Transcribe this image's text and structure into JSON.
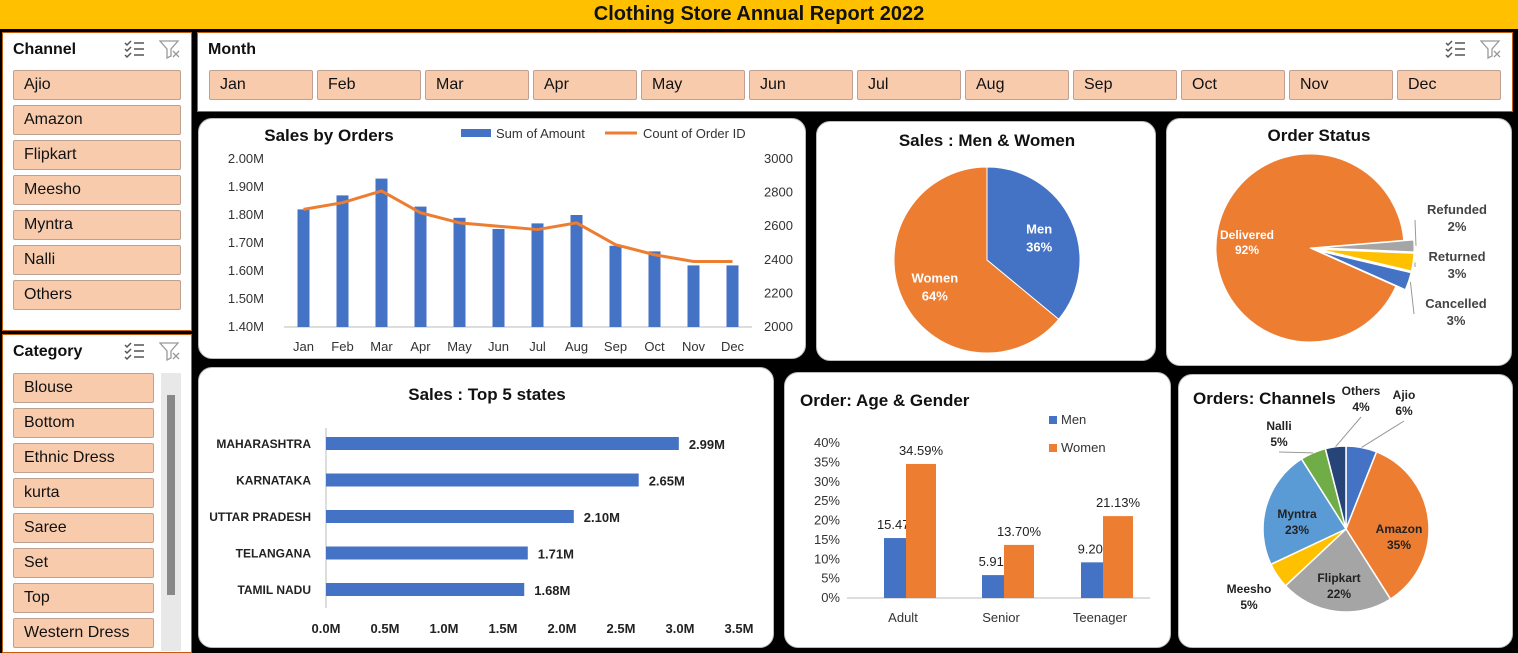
{
  "header": {
    "title": "Clothing Store Annual Report 2022"
  },
  "channel_slicer": {
    "title": "Channel",
    "items": [
      "Ajio",
      "Amazon",
      "Flipkart",
      "Meesho",
      "Myntra",
      "Nalli",
      "Others"
    ]
  },
  "category_slicer": {
    "title": "Category",
    "items": [
      "Blouse",
      "Bottom",
      "Ethnic Dress",
      "kurta",
      "Saree",
      "Set",
      "Top",
      "Western Dress"
    ]
  },
  "month_slicer": {
    "title": "Month",
    "items": [
      "Jan",
      "Feb",
      "Mar",
      "Apr",
      "May",
      "Jun",
      "Jul",
      "Aug",
      "Sep",
      "Oct",
      "Nov",
      "Dec"
    ]
  },
  "icons": {
    "multi_select": "multi-select-icon",
    "clear_filter": "clear-filter-icon"
  },
  "colors": {
    "blue": "#4472C4",
    "orange": "#ED7D31",
    "gray": "#A5A5A5",
    "yellow": "#FFC000",
    "light_blue": "#5B9BD5",
    "green": "#70AD47",
    "dark_blue": "#264478",
    "slicer_fill": "#F8CBAD",
    "title_bar": "#FFC000"
  },
  "chart_data": [
    {
      "id": "sales_by_orders",
      "type": "bar",
      "title": "Sales by Orders",
      "categories": [
        "Jan",
        "Feb",
        "Mar",
        "Apr",
        "May",
        "Jun",
        "Jul",
        "Aug",
        "Sep",
        "Oct",
        "Nov",
        "Dec"
      ],
      "series": [
        {
          "name": "Sum of Amount",
          "type": "bar",
          "axis": "left",
          "values": [
            1.82,
            1.87,
            1.93,
            1.83,
            1.79,
            1.75,
            1.77,
            1.8,
            1.69,
            1.67,
            1.62,
            1.62
          ]
        },
        {
          "name": "Count of Order ID",
          "type": "line",
          "axis": "right",
          "values": [
            2700,
            2740,
            2810,
            2680,
            2620,
            2600,
            2580,
            2620,
            2490,
            2430,
            2390,
            2390
          ]
        }
      ],
      "y_left": {
        "min": 1.4,
        "max": 2.0,
        "ticks": [
          "1.40M",
          "1.50M",
          "1.60M",
          "1.70M",
          "1.80M",
          "1.90M",
          "2.00M"
        ]
      },
      "y_right": {
        "min": 2000,
        "max": 3000,
        "ticks": [
          "2000",
          "2200",
          "2400",
          "2600",
          "2800",
          "3000"
        ]
      },
      "legend": "top"
    },
    {
      "id": "sales_men_women",
      "type": "pie",
      "title": "Sales : Men & Women",
      "slices": [
        {
          "label": "Men",
          "value": 36,
          "text": "36%"
        },
        {
          "label": "Women",
          "value": 64,
          "text": "64%"
        }
      ]
    },
    {
      "id": "order_status",
      "type": "pie",
      "title": "Order Status",
      "slices": [
        {
          "label": "Delivered",
          "value": 92,
          "text": "92%"
        },
        {
          "label": "Refunded",
          "value": 2,
          "text": "2%"
        },
        {
          "label": "Returned",
          "value": 3,
          "text": "3%"
        },
        {
          "label": "Cancelled",
          "value": 3,
          "text": "3%"
        }
      ]
    },
    {
      "id": "top_states",
      "type": "bar",
      "orientation": "horizontal",
      "title": "Sales : Top 5 states",
      "categories": [
        "MAHARASHTRA",
        "KARNATAKA",
        "UTTAR PRADESH",
        "TELANGANA",
        "TAMIL NADU"
      ],
      "values": [
        2.99,
        2.65,
        2.1,
        1.71,
        1.68
      ],
      "labels": [
        "2.99M",
        "2.65M",
        "2.10M",
        "1.71M",
        "1.68M"
      ],
      "x_ticks": [
        "0.0M",
        "0.5M",
        "1.0M",
        "1.5M",
        "2.0M",
        "2.5M",
        "3.0M",
        "3.5M"
      ],
      "xlim": [
        0,
        3.5
      ]
    },
    {
      "id": "age_gender",
      "type": "bar",
      "title": "Order: Age & Gender",
      "categories": [
        "Adult",
        "Senior",
        "Teenager"
      ],
      "series": [
        {
          "name": "Men",
          "values": [
            15.47,
            5.91,
            9.2
          ],
          "labels": [
            "15.47%",
            "5.91%",
            "9.20%"
          ]
        },
        {
          "name": "Women",
          "values": [
            34.59,
            13.7,
            21.13
          ],
          "labels": [
            "34.59%",
            "13.70%",
            "21.13%"
          ]
        }
      ],
      "y_ticks": [
        "0%",
        "5%",
        "10%",
        "15%",
        "20%",
        "25%",
        "30%",
        "35%",
        "40%"
      ],
      "ylim": [
        0,
        40
      ],
      "legend": "top-right"
    },
    {
      "id": "orders_channels",
      "type": "pie",
      "title": "Orders: Channels",
      "slices": [
        {
          "label": "Ajio",
          "value": 6,
          "text": "6%"
        },
        {
          "label": "Amazon",
          "value": 35,
          "text": "35%"
        },
        {
          "label": "Flipkart",
          "value": 22,
          "text": "22%"
        },
        {
          "label": "Meesho",
          "value": 5,
          "text": "5%"
        },
        {
          "label": "Myntra",
          "value": 23,
          "text": "23%"
        },
        {
          "label": "Nalli",
          "value": 5,
          "text": "5%"
        },
        {
          "label": "Others",
          "value": 4,
          "text": "4%"
        }
      ]
    }
  ]
}
